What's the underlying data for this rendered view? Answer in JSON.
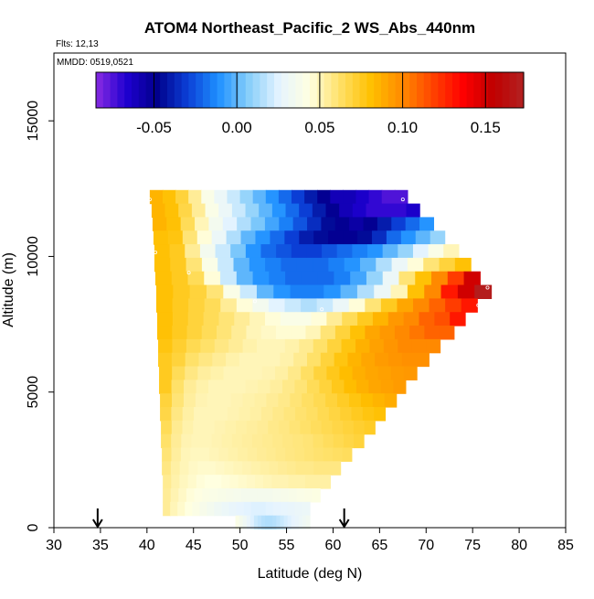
{
  "chart_data": {
    "type": "heatmap",
    "title": "ATOM4 Northeast_Pacific_2 WS_Abs_440nm",
    "flights_label": "Flts: 12,13",
    "dates_label": "MMDD: 0519,0521",
    "xlabel": "Latitude (deg N)",
    "ylabel": "Altitude (m)",
    "xlim": [
      30,
      85
    ],
    "ylim": [
      0,
      17500
    ],
    "x_ticks": [
      "30",
      "35",
      "40",
      "45",
      "50",
      "55",
      "60",
      "65",
      "70",
      "75",
      "80",
      "85"
    ],
    "y_ticks": [
      "0",
      "5000",
      "10000",
      "15000"
    ],
    "colorbar": {
      "range": [
        -0.085,
        0.173
      ],
      "ticks": [
        "-0.05",
        "0.00",
        "0.05",
        "0.10",
        "0.15"
      ],
      "tick_values": [
        -0.05,
        0.0,
        0.05,
        0.1,
        0.15
      ],
      "colors": [
        "#8a2be2",
        "#1e00d0",
        "#00008b",
        "#0b3fd6",
        "#1e90ff",
        "#87cefa",
        "#e6f4ff",
        "#ffffe0",
        "#ffe066",
        "#ffc000",
        "#ff8c00",
        "#ff4500",
        "#ff0000",
        "#c00000",
        "#b22222"
      ]
    },
    "flight_turn_markers": [
      34.7,
      61.2
    ],
    "rows": [
      {
        "alt": 12200,
        "x0": 40.3,
        "x1": 68.0,
        "values": [
          0.085,
          0.08,
          0.07,
          0.055,
          0.04,
          0.03,
          0.02,
          0.01,
          0.0,
          -0.01,
          -0.02,
          -0.03,
          -0.04,
          -0.05,
          -0.06,
          -0.06,
          -0.065,
          -0.07,
          -0.075,
          -0.075
        ]
      },
      {
        "alt": 11700,
        "x0": 40.5,
        "x1": 69.3,
        "values": [
          0.085,
          0.08,
          0.068,
          0.055,
          0.04,
          0.03,
          0.02,
          0.01,
          0.0,
          -0.01,
          -0.02,
          -0.03,
          -0.04,
          -0.05,
          -0.06,
          -0.065,
          -0.07,
          -0.07,
          -0.07,
          -0.065
        ]
      },
      {
        "alt": 11200,
        "x0": 40.6,
        "x1": 70.8,
        "values": [
          0.085,
          0.08,
          0.065,
          0.05,
          0.035,
          0.025,
          0.015,
          0.005,
          -0.005,
          -0.015,
          -0.025,
          -0.035,
          -0.045,
          -0.05,
          -0.055,
          -0.05,
          -0.04,
          -0.03,
          -0.02,
          -0.01
        ]
      },
      {
        "alt": 10700,
        "x0": 40.7,
        "x1": 72.0,
        "values": [
          0.08,
          0.078,
          0.06,
          0.045,
          0.03,
          0.015,
          0.0,
          -0.01,
          -0.02,
          -0.03,
          -0.04,
          -0.045,
          -0.05,
          -0.05,
          -0.045,
          -0.035,
          -0.02,
          -0.01,
          0.0,
          0.01
        ]
      },
      {
        "alt": 10200,
        "x0": 40.8,
        "x1": 73.5,
        "values": [
          0.08,
          0.075,
          0.055,
          0.035,
          0.02,
          0.005,
          -0.01,
          -0.02,
          -0.025,
          -0.03,
          -0.03,
          -0.025,
          -0.02,
          -0.015,
          -0.01,
          0.0,
          0.01,
          0.025,
          0.04,
          0.05
        ]
      },
      {
        "alt": 9700,
        "x0": 40.8,
        "x1": 74.8,
        "values": [
          0.08,
          0.075,
          0.06,
          0.04,
          0.02,
          0.0,
          -0.01,
          -0.015,
          -0.02,
          -0.02,
          -0.02,
          -0.015,
          -0.01,
          0.0,
          0.015,
          0.03,
          0.045,
          0.06,
          0.07,
          0.08
        ]
      },
      {
        "alt": 9200,
        "x0": 40.9,
        "x1": 75.8,
        "values": [
          0.08,
          0.075,
          0.065,
          0.045,
          0.02,
          0.0,
          -0.01,
          -0.015,
          -0.02,
          -0.02,
          -0.02,
          -0.015,
          -0.005,
          0.01,
          0.03,
          0.06,
          0.08,
          0.1,
          0.12,
          0.15
        ]
      },
      {
        "alt": 8700,
        "x0": 41.0,
        "x1": 77.0,
        "values": [
          0.08,
          0.075,
          0.07,
          0.06,
          0.04,
          0.02,
          0.0,
          -0.01,
          -0.015,
          -0.015,
          -0.01,
          0.0,
          0.015,
          0.03,
          0.05,
          0.08,
          0.1,
          0.13,
          0.15,
          0.17
        ]
      },
      {
        "alt": 8200,
        "x0": 41.0,
        "x1": 75.5,
        "values": [
          0.08,
          0.075,
          0.07,
          0.065,
          0.055,
          0.045,
          0.035,
          0.025,
          0.02,
          0.015,
          0.02,
          0.03,
          0.045,
          0.06,
          0.075,
          0.09,
          0.1,
          0.11,
          0.12,
          0.13
        ]
      },
      {
        "alt": 7700,
        "x0": 41.1,
        "x1": 74.2,
        "values": [
          0.08,
          0.075,
          0.07,
          0.065,
          0.06,
          0.055,
          0.05,
          0.045,
          0.04,
          0.04,
          0.045,
          0.055,
          0.065,
          0.075,
          0.085,
          0.095,
          0.1,
          0.11,
          0.115,
          0.13
        ]
      },
      {
        "alt": 7200,
        "x0": 41.1,
        "x1": 73.0,
        "values": [
          0.08,
          0.075,
          0.07,
          0.065,
          0.06,
          0.055,
          0.05,
          0.048,
          0.046,
          0.046,
          0.05,
          0.06,
          0.07,
          0.08,
          0.09,
          0.095,
          0.1,
          0.105,
          0.11,
          0.11
        ]
      },
      {
        "alt": 6700,
        "x0": 41.2,
        "x1": 71.5,
        "values": [
          0.078,
          0.072,
          0.066,
          0.062,
          0.058,
          0.055,
          0.052,
          0.05,
          0.05,
          0.052,
          0.056,
          0.062,
          0.07,
          0.078,
          0.086,
          0.092,
          0.096,
          0.1,
          0.1,
          0.1
        ]
      },
      {
        "alt": 6200,
        "x0": 41.2,
        "x1": 70.3,
        "values": [
          0.075,
          0.07,
          0.062,
          0.058,
          0.055,
          0.052,
          0.05,
          0.05,
          0.05,
          0.052,
          0.056,
          0.062,
          0.07,
          0.078,
          0.085,
          0.09,
          0.094,
          0.096,
          0.098,
          0.098
        ]
      },
      {
        "alt": 5700,
        "x0": 41.3,
        "x1": 69.0,
        "values": [
          0.075,
          0.065,
          0.058,
          0.054,
          0.052,
          0.05,
          0.05,
          0.05,
          0.051,
          0.053,
          0.057,
          0.063,
          0.07,
          0.076,
          0.082,
          0.087,
          0.09,
          0.092,
          0.094,
          0.095
        ]
      },
      {
        "alt": 5200,
        "x0": 41.3,
        "x1": 67.8,
        "values": [
          0.075,
          0.062,
          0.055,
          0.052,
          0.05,
          0.05,
          0.05,
          0.051,
          0.052,
          0.054,
          0.057,
          0.06,
          0.065,
          0.07,
          0.076,
          0.082,
          0.086,
          0.09,
          0.092,
          0.094
        ]
      },
      {
        "alt": 4700,
        "x0": 41.4,
        "x1": 66.8,
        "values": [
          0.07,
          0.06,
          0.054,
          0.051,
          0.05,
          0.05,
          0.051,
          0.052,
          0.053,
          0.055,
          0.057,
          0.06,
          0.063,
          0.066,
          0.07,
          0.074,
          0.078,
          0.082,
          0.085,
          0.088
        ]
      },
      {
        "alt": 4200,
        "x0": 41.4,
        "x1": 65.6,
        "values": [
          0.068,
          0.058,
          0.053,
          0.05,
          0.05,
          0.05,
          0.051,
          0.052,
          0.053,
          0.055,
          0.057,
          0.059,
          0.061,
          0.063,
          0.066,
          0.069,
          0.072,
          0.075,
          0.078,
          0.08
        ]
      },
      {
        "alt": 3700,
        "x0": 41.5,
        "x1": 64.5,
        "values": [
          0.065,
          0.056,
          0.052,
          0.05,
          0.05,
          0.051,
          0.052,
          0.053,
          0.054,
          0.055,
          0.057,
          0.058,
          0.06,
          0.062,
          0.064,
          0.066,
          0.068,
          0.07,
          0.072,
          0.074
        ]
      },
      {
        "alt": 3200,
        "x0": 41.5,
        "x1": 63.3,
        "values": [
          0.062,
          0.055,
          0.051,
          0.05,
          0.05,
          0.051,
          0.052,
          0.053,
          0.054,
          0.055,
          0.056,
          0.057,
          0.058,
          0.059,
          0.06,
          0.062,
          0.064,
          0.066,
          0.068,
          0.07
        ]
      },
      {
        "alt": 2700,
        "x0": 41.6,
        "x1": 62.0,
        "values": [
          0.06,
          0.054,
          0.05,
          0.049,
          0.049,
          0.05,
          0.051,
          0.052,
          0.053,
          0.054,
          0.055,
          0.056,
          0.057,
          0.058,
          0.059,
          0.06,
          0.061,
          0.062,
          0.063,
          0.064
        ]
      },
      {
        "alt": 2200,
        "x0": 41.6,
        "x1": 60.8,
        "values": [
          0.058,
          0.053,
          0.05,
          0.048,
          0.047,
          0.047,
          0.048,
          0.049,
          0.05,
          0.051,
          0.052,
          0.053,
          0.054,
          0.055,
          0.056,
          0.057,
          0.057,
          0.058,
          0.058,
          0.058
        ]
      },
      {
        "alt": 1700,
        "x0": 41.7,
        "x1": 59.7,
        "values": [
          0.056,
          0.052,
          0.049,
          0.047,
          0.045,
          0.044,
          0.044,
          0.045,
          0.046,
          0.047,
          0.048,
          0.049,
          0.05,
          0.051,
          0.051,
          0.052,
          0.052,
          0.053,
          0.053,
          0.053
        ]
      },
      {
        "alt": 1200,
        "x0": 41.7,
        "x1": 58.6,
        "values": [
          0.055,
          0.051,
          0.048,
          0.045,
          0.043,
          0.041,
          0.04,
          0.039,
          0.038,
          0.037,
          0.036,
          0.036,
          0.036,
          0.036,
          0.037,
          0.038,
          0.039,
          0.04,
          0.041,
          0.042
        ]
      },
      {
        "alt": 700,
        "x0": 41.7,
        "x1": 57.5,
        "values": [
          0.055,
          0.05,
          0.047,
          0.044,
          0.041,
          0.038,
          0.035,
          0.032,
          0.03,
          0.028,
          0.026,
          0.025,
          0.024,
          0.024,
          0.025,
          0.026,
          0.027,
          0.028,
          0.029,
          0.03
        ]
      },
      {
        "alt": 200,
        "x0": 49.5,
        "x1": 57.5,
        "values": [
          0.04,
          0.036,
          0.032,
          0.028,
          0.024,
          0.02,
          0.018,
          0.016,
          0.015,
          0.015,
          0.016,
          0.018,
          0.02,
          0.022,
          0.024,
          0.026,
          0.028,
          0.03,
          0.032,
          0.034
        ]
      }
    ],
    "sample_points": [
      {
        "lat": 40.3,
        "alt": 12100
      },
      {
        "lat": 67.5,
        "alt": 12100
      },
      {
        "lat": 40.9,
        "alt": 10150
      },
      {
        "lat": 44.5,
        "alt": 9400
      },
      {
        "lat": 76.6,
        "alt": 8850
      },
      {
        "lat": 75.6,
        "alt": 8200
      },
      {
        "lat": 58.8,
        "alt": 8050
      },
      {
        "lat": 51.6,
        "alt": 8350
      }
    ]
  }
}
